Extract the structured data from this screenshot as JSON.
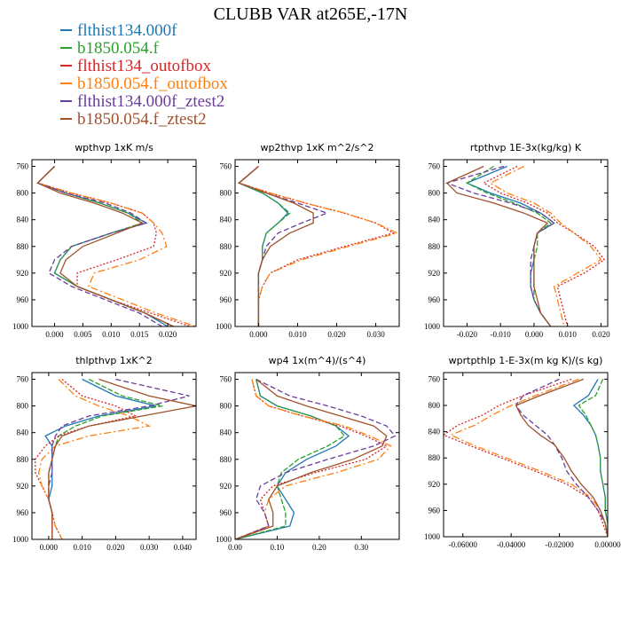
{
  "title": "CLUBB VAR at265E,-17N",
  "legend": [
    {
      "label": "flthist134.000f",
      "color": "#1f77b4"
    },
    {
      "label": "b1850.054.f",
      "color": "#2ca02c"
    },
    {
      "label": "flthist134_outofbox",
      "color": "#d62728"
    },
    {
      "label": "b1850.054.f_outofbox",
      "color": "#ff7f0e"
    },
    {
      "label": "flthist134.000f_ztest2",
      "color": "#6a3d9a"
    },
    {
      "label": "b1850.054.f_ztest2",
      "color": "#a0522d"
    }
  ],
  "chart_data": [
    {
      "type": "line",
      "title": "wpthvp  1xK m/s",
      "xlim": [
        -0.004,
        0.025
      ],
      "ylim": [
        1000,
        750
      ],
      "xticks": [
        0,
        0.005,
        0.01,
        0.015,
        0.02
      ],
      "xtick_labels": [
        "0.000",
        "0.005",
        "0.010",
        "0.015",
        "0.020"
      ],
      "yticks": [
        760,
        800,
        840,
        880,
        920,
        960,
        1000
      ],
      "ytick_labels": [
        "760",
        "800",
        "840",
        "880",
        "920",
        "960",
        "1000"
      ],
      "y": [
        760,
        785,
        800,
        815,
        830,
        845,
        860,
        880,
        900,
        920,
        940,
        960,
        980,
        1000
      ],
      "series": [
        {
          "name": "flthist134.000f",
          "x": [
            0.0,
            -0.003,
            0.002,
            0.008,
            0.013,
            0.0162,
            0.01,
            0.003,
            0.001,
            0.0,
            0.004,
            0.01,
            0.016,
            0.02
          ]
        },
        {
          "name": "b1850.054.f",
          "x": [
            0.0,
            -0.003,
            0.002,
            0.008,
            0.013,
            0.0155,
            0.01,
            0.003,
            0.001,
            0.0,
            0.004,
            0.01,
            0.016,
            0.021
          ]
        },
        {
          "name": "flthist134_outofbox",
          "x": [
            0.0,
            -0.003,
            0.003,
            0.01,
            0.0155,
            0.0175,
            0.018,
            0.0175,
            0.011,
            0.004,
            0.004,
            0.01,
            0.017,
            0.024
          ]
        },
        {
          "name": "b1850.054.f_outofbox",
          "x": [
            0.0,
            -0.003,
            0.003,
            0.01,
            0.0155,
            0.0175,
            0.019,
            0.0198,
            0.015,
            0.007,
            0.006,
            0.012,
            0.018,
            0.025
          ]
        },
        {
          "name": "flthist134.000f_ztest2",
          "x": [
            0.0,
            -0.003,
            0.002,
            0.009,
            0.0135,
            0.0162,
            0.01,
            0.003,
            0.0,
            -0.001,
            0.003,
            0.009,
            0.015,
            0.019
          ]
        },
        {
          "name": "b1850.054.f_ztest2",
          "x": [
            0.0,
            -0.003,
            0.001,
            0.007,
            0.012,
            0.0155,
            0.011,
            0.005,
            0.002,
            0.001,
            0.004,
            0.01,
            0.016,
            0.021
          ]
        }
      ]
    },
    {
      "type": "line",
      "title": "wp2thvp  1xK m^2/s^2",
      "xlim": [
        -0.006,
        0.036
      ],
      "ylim": [
        1000,
        750
      ],
      "xticks": [
        0,
        0.01,
        0.02,
        0.03
      ],
      "xtick_labels": [
        "0.000",
        "0.010",
        "0.020",
        "0.030"
      ],
      "yticks": [
        760,
        800,
        840,
        880,
        920,
        960,
        1000
      ],
      "ytick_labels": [
        "760",
        "800",
        "840",
        "880",
        "920",
        "960",
        "1000"
      ],
      "y": [
        760,
        785,
        800,
        815,
        830,
        845,
        860,
        880,
        900,
        920,
        940,
        960,
        980,
        1000
      ],
      "series": [
        {
          "name": "flthist134.000f",
          "x": [
            0.0,
            -0.005,
            0.001,
            0.005,
            0.0075,
            0.005,
            0.002,
            0.001,
            0.001,
            0.0,
            0.0,
            0.0,
            0.0,
            0.0
          ]
        },
        {
          "name": "b1850.054.f",
          "x": [
            0.0,
            -0.005,
            0.001,
            0.005,
            0.008,
            0.005,
            0.002,
            0.001,
            0.001,
            0.0,
            0.0,
            0.0,
            0.0,
            0.0
          ]
        },
        {
          "name": "flthist134_outofbox",
          "x": [
            0.0,
            -0.005,
            0.003,
            0.012,
            0.022,
            0.03,
            0.0345,
            0.022,
            0.01,
            0.003,
            0.001,
            0.0,
            0.0,
            0.0
          ]
        },
        {
          "name": "b1850.054.f_outofbox",
          "x": [
            0.0,
            -0.005,
            0.003,
            0.012,
            0.022,
            0.03,
            0.0355,
            0.023,
            0.011,
            0.003,
            0.001,
            0.0,
            0.0,
            0.0
          ]
        },
        {
          "name": "flthist134.000f_ztest2",
          "x": [
            0.0,
            -0.005,
            0.002,
            0.01,
            0.0175,
            0.011,
            0.005,
            0.002,
            0.001,
            0.0,
            0.0,
            0.0,
            0.0,
            0.0
          ]
        },
        {
          "name": "b1850.054.f_ztest2",
          "x": [
            0.0,
            -0.005,
            0.002,
            0.009,
            0.014,
            0.014,
            0.008,
            0.003,
            0.001,
            0.0,
            0.0,
            0.0,
            0.0,
            0.0
          ]
        }
      ]
    },
    {
      "type": "line",
      "title": "rtpthvp  1E-3x(kg/kg) K",
      "xlim": [
        -0.027,
        0.022
      ],
      "ylim": [
        1000,
        750
      ],
      "xticks": [
        -0.02,
        -0.01,
        0,
        0.01,
        0.02
      ],
      "xtick_labels": [
        "-0.020",
        "-0.010",
        "0.000",
        "0.010",
        "0.020"
      ],
      "yticks": [
        760,
        800,
        840,
        880,
        920,
        960,
        1000
      ],
      "ytick_labels": [
        "760",
        "800",
        "840",
        "880",
        "920",
        "960",
        "1000"
      ],
      "y": [
        760,
        785,
        800,
        815,
        830,
        845,
        860,
        880,
        900,
        920,
        940,
        960,
        980,
        1000
      ],
      "series": [
        {
          "name": "flthist134.000f",
          "x": [
            -0.008,
            -0.02,
            -0.013,
            -0.004,
            0.002,
            0.006,
            0.001,
            0.0,
            0.0,
            -0.001,
            -0.001,
            0.0,
            0.002,
            0.005
          ]
        },
        {
          "name": "b1850.054.f",
          "x": [
            -0.012,
            -0.02,
            -0.014,
            -0.006,
            0.001,
            0.005,
            0.001,
            0.001,
            0.0,
            0.0,
            0.0,
            0.0,
            0.002,
            0.005
          ]
        },
        {
          "name": "flthist134_outofbox",
          "x": [
            -0.005,
            -0.015,
            -0.01,
            -0.002,
            0.004,
            0.007,
            0.012,
            0.018,
            0.021,
            0.015,
            0.007,
            0.008,
            0.009,
            0.01
          ]
        },
        {
          "name": "b1850.054.f_outofbox",
          "x": [
            -0.003,
            -0.013,
            -0.008,
            0.0,
            0.005,
            0.008,
            0.012,
            0.017,
            0.02,
            0.013,
            0.006,
            0.007,
            0.008,
            0.009
          ]
        },
        {
          "name": "flthist134.000f_ztest2",
          "x": [
            -0.009,
            -0.026,
            -0.018,
            -0.007,
            0.002,
            0.006,
            0.001,
            0.0,
            -0.001,
            -0.001,
            -0.001,
            0.0,
            0.002,
            0.005
          ]
        },
        {
          "name": "b1850.054.f_ztest2",
          "x": [
            -0.015,
            -0.026,
            -0.023,
            -0.012,
            -0.003,
            0.004,
            0.001,
            0.0,
            0.0,
            0.0,
            0.0,
            0.001,
            0.002,
            0.005
          ]
        }
      ]
    },
    {
      "type": "line",
      "title": "thlpthvp  1xK^2",
      "xlim": [
        -0.005,
        0.044
      ],
      "ylim": [
        1000,
        750
      ],
      "xticks": [
        0,
        0.01,
        0.02,
        0.03,
        0.04
      ],
      "xtick_labels": [
        "0.000",
        "0.010",
        "0.020",
        "0.030",
        "0.040"
      ],
      "yticks": [
        760,
        800,
        840,
        880,
        920,
        960,
        1000
      ],
      "ytick_labels": [
        "760",
        "800",
        "840",
        "880",
        "920",
        "960",
        "1000"
      ],
      "y": [
        760,
        785,
        800,
        815,
        830,
        845,
        860,
        880,
        900,
        920,
        940,
        960,
        980,
        1000
      ],
      "series": [
        {
          "name": "flthist134.000f",
          "x": [
            0.01,
            0.02,
            0.032,
            0.015,
            0.005,
            -0.001,
            0.001,
            0.001,
            0.001,
            0.001,
            0.0,
            0.001,
            0.001,
            0.001
          ]
        },
        {
          "name": "b1850.054.f",
          "x": [
            0.012,
            0.022,
            0.034,
            0.016,
            0.008,
            0.003,
            0.002,
            0.001,
            0.0,
            0.0,
            0.0,
            0.001,
            0.001,
            0.001
          ]
        },
        {
          "name": "flthist134_outofbox",
          "x": [
            0.004,
            0.01,
            0.02,
            0.026,
            0.012,
            0.003,
            -0.001,
            -0.004,
            -0.004,
            -0.002,
            0.0,
            0.001,
            0.002,
            0.004
          ]
        },
        {
          "name": "b1850.054.f_outofbox",
          "x": [
            0.003,
            0.008,
            0.015,
            0.024,
            0.03,
            0.012,
            0.002,
            -0.002,
            -0.003,
            -0.002,
            0.0,
            0.001,
            0.002,
            0.004
          ]
        },
        {
          "name": "flthist134.000f_ztest2",
          "x": [
            0.02,
            0.042,
            0.03,
            0.012,
            0.004,
            0.002,
            0.001,
            0.001,
            0.001,
            0.0,
            0.0,
            0.001,
            0.001,
            0.001
          ]
        },
        {
          "name": "b1850.054.f_ztest2",
          "x": [
            0.015,
            0.03,
            0.044,
            0.028,
            0.012,
            0.004,
            0.002,
            0.001,
            0.0,
            0.0,
            0.0,
            0.001,
            0.001,
            0.001
          ]
        }
      ]
    },
    {
      "type": "line",
      "title": "wp4  1x(m^4)/(s^4)",
      "xlim": [
        0.0,
        0.39
      ],
      "ylim": [
        1000,
        750
      ],
      "xticks": [
        0,
        0.1,
        0.2,
        0.3
      ],
      "xtick_labels": [
        "0.00",
        "0.10",
        "0.20",
        "0.30"
      ],
      "yticks": [
        760,
        800,
        840,
        880,
        920,
        960,
        1000
      ],
      "ytick_labels": [
        "760",
        "800",
        "840",
        "880",
        "920",
        "960",
        "1000"
      ],
      "y": [
        760,
        785,
        800,
        815,
        830,
        845,
        860,
        880,
        900,
        920,
        940,
        960,
        980,
        1000
      ],
      "series": [
        {
          "name": "flthist134.000f",
          "x": [
            0.05,
            0.06,
            0.1,
            0.18,
            0.24,
            0.27,
            0.24,
            0.17,
            0.12,
            0.1,
            0.12,
            0.14,
            0.13,
            0.0
          ]
        },
        {
          "name": "b1850.054.f",
          "x": [
            0.05,
            0.06,
            0.1,
            0.18,
            0.24,
            0.26,
            0.22,
            0.15,
            0.11,
            0.1,
            0.11,
            0.12,
            0.12,
            0.0
          ]
        },
        {
          "name": "flthist134_outofbox",
          "x": [
            0.04,
            0.05,
            0.08,
            0.16,
            0.25,
            0.31,
            0.36,
            0.31,
            0.19,
            0.09,
            0.06,
            0.07,
            0.08,
            0.0
          ]
        },
        {
          "name": "b1850.054.f_outofbox",
          "x": [
            0.04,
            0.05,
            0.08,
            0.16,
            0.26,
            0.32,
            0.37,
            0.34,
            0.24,
            0.12,
            0.08,
            0.07,
            0.08,
            0.0
          ]
        },
        {
          "name": "flthist134.000f_ztest2",
          "x": [
            0.05,
            0.13,
            0.22,
            0.3,
            0.36,
            0.38,
            0.33,
            0.22,
            0.12,
            0.06,
            0.05,
            0.07,
            0.08,
            0.0
          ]
        },
        {
          "name": "b1850.054.f_ztest2",
          "x": [
            0.05,
            0.1,
            0.17,
            0.25,
            0.33,
            0.36,
            0.35,
            0.28,
            0.18,
            0.1,
            0.08,
            0.09,
            0.09,
            0.0
          ]
        }
      ]
    },
    {
      "type": "line",
      "title": "wprtpthlp  1-E-3x(m kg K)/(s kg)",
      "xlim": [
        -0.068,
        0.0
      ],
      "ylim": [
        1000,
        750
      ],
      "xticks": [
        -0.06,
        -0.04,
        -0.02,
        0
      ],
      "xtick_labels": [
        "-0.06000",
        "-0.04000",
        "-0.02000",
        "0.00000"
      ],
      "yticks": [
        760,
        800,
        840,
        880,
        920,
        960,
        1000
      ],
      "ytick_labels": [
        "760",
        "800",
        "840",
        "880",
        "920",
        "960",
        "1000"
      ],
      "y": [
        760,
        785,
        800,
        815,
        830,
        845,
        860,
        880,
        900,
        920,
        940,
        960,
        980,
        1000
      ],
      "series": [
        {
          "name": "flthist134.000f",
          "x": [
            -0.004,
            -0.008,
            -0.014,
            -0.01,
            -0.007,
            -0.005,
            -0.004,
            -0.003,
            -0.003,
            -0.002,
            -0.001,
            -0.001,
            0.0,
            0.0
          ]
        },
        {
          "name": "b1850.054.f",
          "x": [
            -0.002,
            -0.005,
            -0.012,
            -0.009,
            -0.007,
            -0.005,
            -0.004,
            -0.003,
            -0.003,
            -0.002,
            -0.001,
            -0.001,
            0.0,
            0.0
          ]
        },
        {
          "name": "flthist134_outofbox",
          "x": [
            -0.015,
            -0.035,
            -0.045,
            -0.052,
            -0.062,
            -0.068,
            -0.058,
            -0.044,
            -0.03,
            -0.017,
            -0.008,
            -0.004,
            -0.002,
            0.0
          ]
        },
        {
          "name": "b1850.054.f_outofbox",
          "x": [
            -0.012,
            -0.03,
            -0.04,
            -0.048,
            -0.055,
            -0.065,
            -0.056,
            -0.042,
            -0.028,
            -0.015,
            -0.007,
            -0.003,
            -0.001,
            0.0
          ]
        },
        {
          "name": "flthist134.000f_ztest2",
          "x": [
            -0.02,
            -0.035,
            -0.038,
            -0.035,
            -0.03,
            -0.025,
            -0.022,
            -0.019,
            -0.017,
            -0.013,
            -0.008,
            -0.004,
            -0.001,
            0.0
          ]
        },
        {
          "name": "b1850.054.f_ztest2",
          "x": [
            -0.01,
            -0.028,
            -0.038,
            -0.036,
            -0.033,
            -0.028,
            -0.022,
            -0.018,
            -0.015,
            -0.011,
            -0.006,
            -0.003,
            -0.001,
            0.0
          ]
        }
      ]
    }
  ]
}
